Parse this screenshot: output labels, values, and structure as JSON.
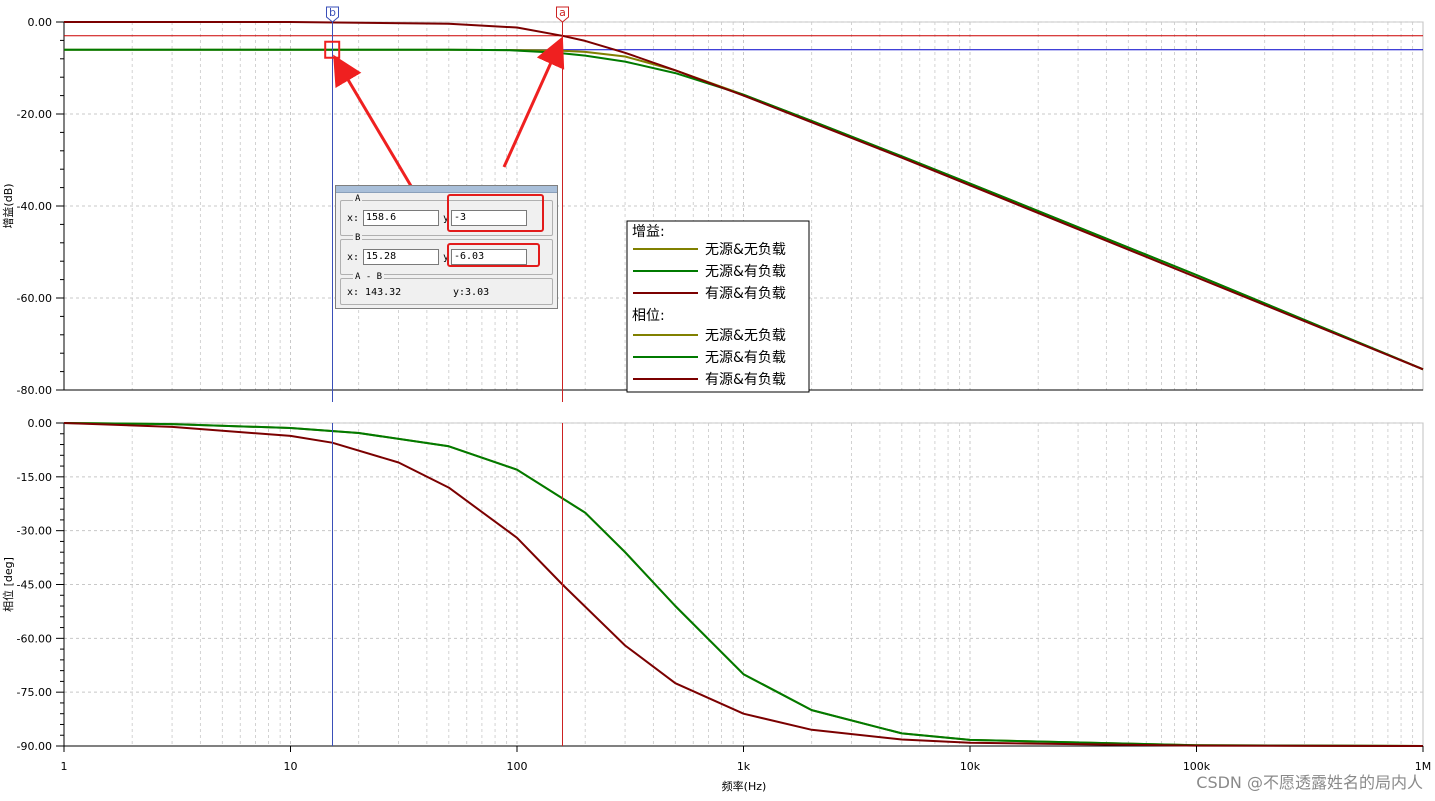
{
  "chart_data": [
    {
      "type": "line",
      "ylabel": "增益(dB)",
      "yticks": [
        "0.00",
        "-20.00",
        "-40.00",
        "-60.00",
        "-80.00"
      ],
      "ylim": [
        -80,
        0
      ],
      "x_scale": "log",
      "xlim": [
        1,
        1000000
      ],
      "grid": true,
      "series": [
        {
          "name": "无源&无负载",
          "color": "#808000",
          "x": [
            1,
            10,
            50,
            100,
            150,
            200,
            300,
            500,
            1000,
            2000,
            5000,
            10000,
            100000,
            1000000
          ],
          "y": [
            -6.02,
            -6.02,
            -6.04,
            -6.1,
            -6.2,
            -6.5,
            -7.5,
            -10.5,
            -15.8,
            -21.5,
            -29.2,
            -35.1,
            -55.0,
            -75.5
          ]
        },
        {
          "name": "无源&有负载",
          "color": "#007a00",
          "x": [
            1,
            10,
            50,
            90,
            150,
            200,
            300,
            500,
            1000,
            2000,
            5000,
            10000,
            100000,
            1000000
          ],
          "y": [
            -6.02,
            -6.02,
            -6.04,
            -6.1,
            -6.7,
            -7.3,
            -8.6,
            -11.1,
            -15.8,
            -21.5,
            -29.2,
            -35.1,
            -55.0,
            -75.5
          ]
        },
        {
          "name": "有源&有负载",
          "color": "#7b0000",
          "x": [
            1,
            10,
            50,
            100,
            158.6,
            200,
            300,
            500,
            1000,
            2000,
            5000,
            10000,
            100000,
            1000000
          ],
          "y": [
            0,
            0,
            -0.4,
            -1.2,
            -3.0,
            -4.1,
            -6.7,
            -10.5,
            -16.0,
            -21.8,
            -29.5,
            -35.5,
            -55.5,
            -75.5
          ]
        }
      ],
      "hlines": [
        {
          "y": -3.0,
          "color": "#cc0000"
        },
        {
          "y": -6.03,
          "color": "#0000cc"
        }
      ]
    },
    {
      "type": "line",
      "xlabel": "频率(Hz)",
      "ylabel": "相位 [deg]",
      "yticks": [
        "0.00",
        "-15.00",
        "-30.00",
        "-45.00",
        "-60.00",
        "-75.00",
        "-90.00"
      ],
      "xticks": [
        "1",
        "10",
        "100",
        "1k",
        "10k",
        "100k",
        "1M"
      ],
      "ylim": [
        -90,
        0
      ],
      "x_scale": "log",
      "xlim": [
        1,
        1000000
      ],
      "grid": true,
      "series": [
        {
          "name": "无源&无负载",
          "color": "#808000",
          "x": [
            1,
            3,
            10,
            20,
            50,
            100,
            200,
            300,
            500,
            1000,
            2000,
            5000,
            10000,
            100000,
            1000000
          ],
          "y": [
            0,
            -0.3,
            -1.4,
            -2.8,
            -6.5,
            -13,
            -25,
            -36,
            -51,
            -70,
            -80,
            -86.5,
            -88.3,
            -89.8,
            -90
          ]
        },
        {
          "name": "无源&有负载",
          "color": "#007a00",
          "x": [
            1,
            3,
            10,
            20,
            50,
            100,
            200,
            300,
            500,
            1000,
            2000,
            5000,
            10000,
            100000,
            1000000
          ],
          "y": [
            0,
            -0.3,
            -1.4,
            -2.8,
            -6.5,
            -13,
            -25,
            -36,
            -51,
            -70,
            -80,
            -86.5,
            -88.3,
            -89.8,
            -90
          ]
        },
        {
          "name": "有源&有负载",
          "color": "#7b0000",
          "x": [
            1,
            3,
            10,
            15.28,
            30,
            50,
            100,
            158.6,
            300,
            500,
            1000,
            2000,
            5000,
            10000,
            100000,
            1000000
          ],
          "y": [
            0,
            -1.1,
            -3.6,
            -5.5,
            -11,
            -18,
            -32,
            -45,
            -62,
            -72.5,
            -81,
            -85.5,
            -88.2,
            -89.1,
            -89.9,
            -90
          ]
        }
      ]
    }
  ],
  "markers": [
    {
      "label": "b",
      "x": 15.28,
      "color": "#3a4fb8"
    },
    {
      "label": "a",
      "x": 158.6,
      "color": "#cc2222"
    }
  ],
  "legend": {
    "gain_header": "增益:",
    "phase_header": "相位:",
    "items": [
      {
        "name": "无源&无负载",
        "color": "#808000"
      },
      {
        "name": "无源&有负载",
        "color": "#007a00"
      },
      {
        "name": "有源&有负载",
        "color": "#7b0000"
      }
    ]
  },
  "cursor_panel": {
    "a_label": "A",
    "a_x_label": "x:",
    "a_x": "158.6",
    "a_y_label": "y",
    "a_y": "-3",
    "b_label": "B",
    "b_x_label": "x:",
    "b_x": "15.28",
    "b_y_label": "y",
    "b_y": "-6.03",
    "diff_label": "A - B",
    "diff_x": "x: 143.32",
    "diff_y": "y:3.03"
  },
  "watermark": "CSDN @不愿透露姓名的局内人"
}
